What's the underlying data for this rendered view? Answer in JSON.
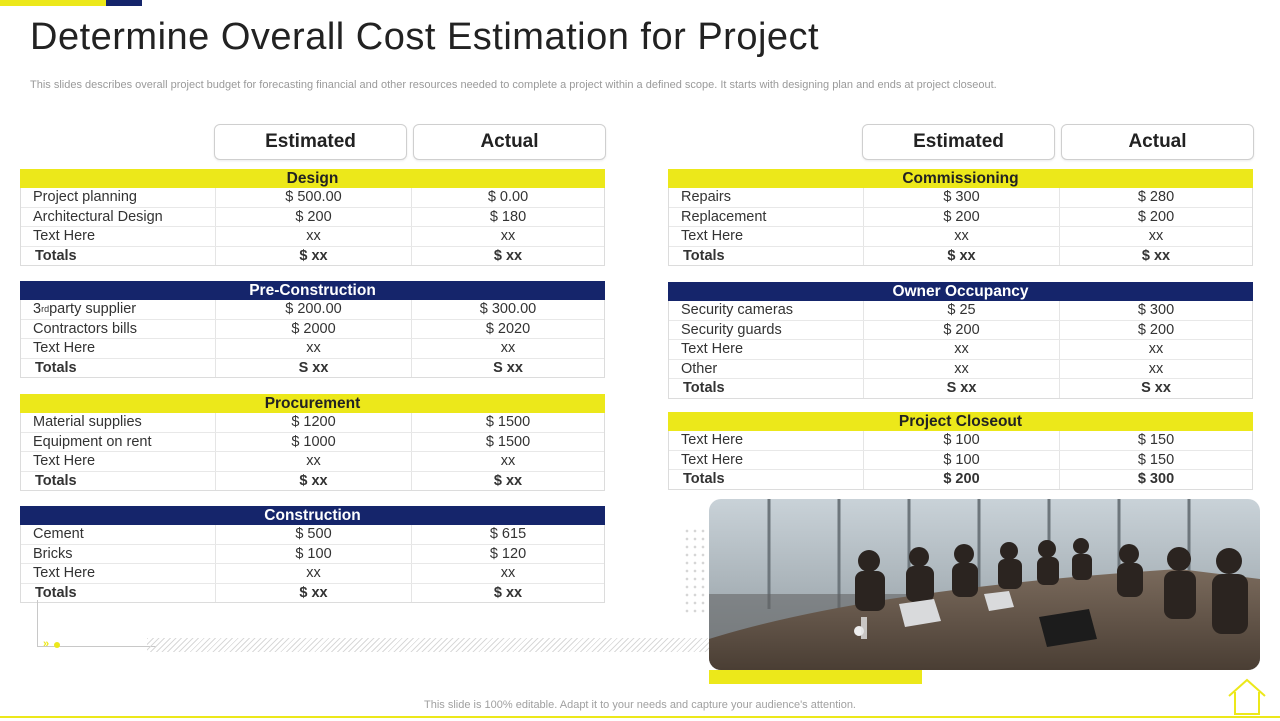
{
  "title": "Determine Overall Cost Estimation for Project",
  "subtitle": "This slides describes overall project budget for forecasting financial and other resources needed to complete a project within a defined scope. It starts with designing plan and ends at project closeout.",
  "headers": {
    "estimated": "Estimated",
    "actual": "Actual"
  },
  "left": {
    "design": {
      "title": "Design",
      "rows": [
        {
          "label": "Project planning",
          "estimated": "$ 500.00",
          "actual": "$ 0.00"
        },
        {
          "label": "Architectural Design",
          "estimated": "$ 200",
          "actual": "$ 180"
        },
        {
          "label": "Text Here",
          "estimated": "xx",
          "actual": "xx"
        },
        {
          "label": "Totals",
          "estimated": "$ xx",
          "actual": "$ xx"
        }
      ]
    },
    "preconstruction": {
      "title": "Pre-Construction",
      "supplier_prefix": "3",
      "supplier_sup": "rd",
      "supplier_suffix": " party supplier",
      "rows": [
        {
          "label": "3rd party supplier",
          "estimated": "$ 200.00",
          "actual": "$ 300.00"
        },
        {
          "label": "Contractors bills",
          "estimated": "$ 2000",
          "actual": "$ 2020"
        },
        {
          "label": "Text Here",
          "estimated": "xx",
          "actual": "xx"
        },
        {
          "label": "Totals",
          "estimated": "S xx",
          "actual": "S xx"
        }
      ]
    },
    "procurement": {
      "title": "Procurement",
      "rows": [
        {
          "label": "Material supplies",
          "estimated": "$ 1200",
          "actual": "$ 1500"
        },
        {
          "label": "Equipment on rent",
          "estimated": "$ 1000",
          "actual": "$ 1500"
        },
        {
          "label": "Text Here",
          "estimated": "xx",
          "actual": "xx"
        },
        {
          "label": "Totals",
          "estimated": "$ xx",
          "actual": "$ xx"
        }
      ]
    },
    "construction": {
      "title": "Construction",
      "rows": [
        {
          "label": "Cement",
          "estimated": "$ 500",
          "actual": "$ 615"
        },
        {
          "label": "Bricks",
          "estimated": "$ 100",
          "actual": "$ 120"
        },
        {
          "label": "Text Here",
          "estimated": "xx",
          "actual": "xx"
        },
        {
          "label": "Totals",
          "estimated": "$ xx",
          "actual": "$ xx"
        }
      ]
    }
  },
  "right": {
    "commissioning": {
      "title": "Commissioning",
      "rows": [
        {
          "label": "Repairs",
          "estimated": "$ 300",
          "actual": "$ 280"
        },
        {
          "label": "Replacement",
          "estimated": "$ 200",
          "actual": "$ 200"
        },
        {
          "label": "Text Here",
          "estimated": "xx",
          "actual": "xx"
        },
        {
          "label": "Totals",
          "estimated": "$ xx",
          "actual": "$ xx"
        }
      ]
    },
    "occupancy": {
      "title": "Owner Occupancy",
      "rows": [
        {
          "label": "Security cameras",
          "estimated": "$ 25",
          "actual": "$ 300"
        },
        {
          "label": "Security guards",
          "estimated": "$ 200",
          "actual": "$ 200"
        },
        {
          "label": "Text Here",
          "estimated": "xx",
          "actual": "xx"
        },
        {
          "label": "Other",
          "estimated": "xx",
          "actual": "xx"
        },
        {
          "label": "Totals",
          "estimated": "S xx",
          "actual": "S xx"
        }
      ]
    },
    "closeout": {
      "title": "Project Closeout",
      "rows": [
        {
          "label": "Text Here",
          "estimated": "$ 100",
          "actual": "$ 150"
        },
        {
          "label": "Text Here",
          "estimated": "$ 100",
          "actual": "$ 150"
        },
        {
          "label": "Totals",
          "estimated": "$ 200",
          "actual": "$ 300"
        }
      ]
    }
  },
  "footer": "This slide is 100% editable. Adapt it to your needs and capture your audience's attention.",
  "colors": {
    "yellow": "#ece81a",
    "navy": "#15256b"
  }
}
